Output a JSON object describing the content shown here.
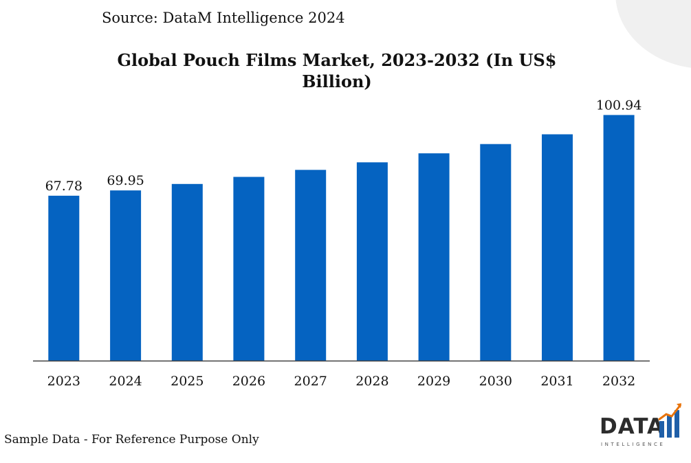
{
  "source": "Source: DataM Intelligence 2024",
  "footnote": "Sample Data - For Reference Purpose Only",
  "logo": {
    "word": "DATA",
    "sub": "INTELLIGENCE"
  },
  "colors": {
    "bar": "#0563c1",
    "axis": "#404040",
    "logo_orange": "#e8730a",
    "logo_blue": "#1f5fa8"
  },
  "chart_data": {
    "type": "bar",
    "title": "Global Pouch Films Market, 2023-2032 (In US$ Billion)",
    "title_lines": [
      "Global Pouch Films Market, 2023-2032 (In US$",
      "Billion)"
    ],
    "xlabel": "",
    "ylabel": "",
    "categories": [
      "2023",
      "2024",
      "2025",
      "2026",
      "2027",
      "2028",
      "2029",
      "2030",
      "2031",
      "2032"
    ],
    "values": [
      67.78,
      69.95,
      72.6,
      75.5,
      78.4,
      81.5,
      85.2,
      89.0,
      93.0,
      100.94
    ],
    "data_labels": [
      "67.78",
      "69.95",
      "",
      "",
      "",
      "",
      "",
      "",
      "",
      "100.94"
    ],
    "ylim": [
      0,
      111.5
    ],
    "grid": false,
    "legend": "none"
  }
}
